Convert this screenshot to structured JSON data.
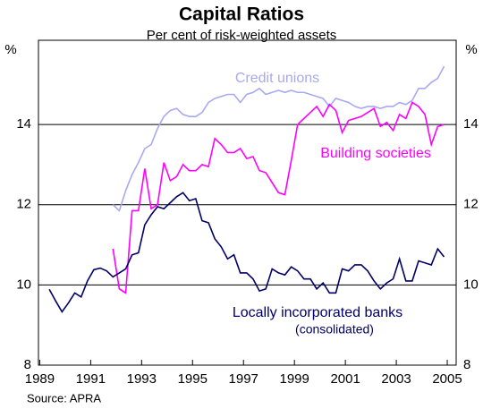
{
  "chart_data": {
    "type": "line",
    "title": "Capital Ratios",
    "subtitle": "Per cent of risk-weighted assets",
    "source": "Source: APRA",
    "y_unit": "%",
    "annotations": [
      "(consolidated)"
    ],
    "x": [
      1989.375,
      1989.625,
      1989.875,
      1990.125,
      1990.375,
      1990.625,
      1990.875,
      1991.125,
      1991.375,
      1991.625,
      1991.875,
      1992.125,
      1992.375,
      1992.625,
      1992.875,
      1993.125,
      1993.375,
      1993.625,
      1993.875,
      1994.125,
      1994.375,
      1994.625,
      1994.875,
      1995.125,
      1995.375,
      1995.625,
      1995.875,
      1996.125,
      1996.375,
      1996.625,
      1996.875,
      1997.125,
      1997.375,
      1997.625,
      1997.875,
      1998.125,
      1998.375,
      1998.625,
      1998.875,
      1999.125,
      1999.375,
      1999.625,
      1999.875,
      2000.125,
      2000.375,
      2000.625,
      2000.875,
      2001.125,
      2001.375,
      2001.625,
      2001.875,
      2002.125,
      2002.375,
      2002.625,
      2002.875,
      2003.125,
      2003.375,
      2003.625,
      2003.875,
      2004.125,
      2004.375,
      2004.625,
      2004.875
    ],
    "series": [
      {
        "name": "Credit unions",
        "color": "#a9a9f0",
        "values": [
          null,
          null,
          null,
          null,
          null,
          null,
          null,
          null,
          null,
          null,
          12.0,
          11.85,
          12.35,
          12.75,
          13.05,
          13.4,
          13.5,
          13.9,
          14.2,
          14.35,
          14.4,
          14.25,
          14.2,
          14.2,
          14.3,
          14.55,
          14.65,
          14.7,
          14.75,
          14.75,
          14.55,
          14.75,
          14.8,
          14.9,
          14.75,
          14.8,
          14.85,
          14.8,
          14.85,
          14.8,
          14.8,
          14.75,
          14.7,
          14.65,
          14.45,
          14.65,
          14.6,
          14.55,
          14.45,
          14.4,
          14.45,
          14.45,
          14.4,
          14.45,
          14.45,
          14.55,
          14.5,
          14.6,
          14.9,
          14.9,
          15.05,
          15.15,
          15.45
        ]
      },
      {
        "name": "Building societies",
        "color": "#ff00ff",
        "values": [
          null,
          null,
          null,
          null,
          null,
          null,
          null,
          null,
          null,
          null,
          10.9,
          9.9,
          9.8,
          11.85,
          11.85,
          12.9,
          11.9,
          12.0,
          13.05,
          12.6,
          12.7,
          13.0,
          12.85,
          12.85,
          13.0,
          12.95,
          13.65,
          13.5,
          13.3,
          13.3,
          13.4,
          13.15,
          13.2,
          12.85,
          12.8,
          12.55,
          12.3,
          12.25,
          13.1,
          14.0,
          14.15,
          14.3,
          14.45,
          14.2,
          14.5,
          14.35,
          13.8,
          14.1,
          14.15,
          14.2,
          14.3,
          14.4,
          13.95,
          14.05,
          13.85,
          14.25,
          14.15,
          14.55,
          14.45,
          14.25,
          13.5,
          13.95,
          14.0
        ]
      },
      {
        "name": "Locally incorporated banks",
        "color": "#000066",
        "values": [
          9.89,
          9.6,
          9.33,
          9.55,
          9.8,
          9.7,
          10.1,
          10.38,
          10.42,
          10.35,
          10.2,
          10.3,
          10.4,
          10.75,
          10.8,
          11.5,
          11.75,
          11.95,
          11.9,
          12.05,
          12.2,
          12.3,
          12.1,
          12.15,
          11.6,
          11.55,
          11.15,
          10.95,
          10.65,
          10.75,
          10.3,
          10.3,
          10.15,
          9.85,
          9.9,
          10.4,
          10.3,
          10.25,
          10.45,
          10.35,
          10.15,
          10.15,
          9.9,
          10.05,
          9.8,
          9.8,
          10.4,
          10.35,
          10.5,
          10.5,
          10.35,
          10.1,
          9.9,
          10.05,
          10.15,
          10.65,
          10.1,
          10.1,
          10.6,
          10.55,
          10.5,
          10.9,
          10.7
        ]
      }
    ],
    "xlim": [
      1988.95,
      2005.35
    ],
    "xticks": [
      1989,
      1991,
      1993,
      1995,
      1997,
      1999,
      2001,
      2003,
      2005
    ],
    "ylim": [
      8,
      16.1
    ],
    "yticks": [
      8,
      10,
      12,
      14
    ],
    "y2lim": [
      8,
      16.1
    ],
    "y2ticks": [
      8,
      10,
      12,
      14
    ],
    "grid": true
  }
}
